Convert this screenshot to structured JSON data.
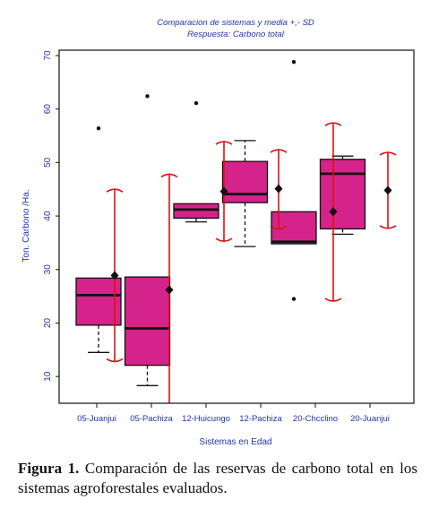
{
  "chart_data": {
    "type": "box",
    "title": "Comparacion de sistemas y media +,- SD",
    "subtitle": "Respuesta: Carbono total",
    "xlabel": "Sistemas en Edad",
    "ylabel": "Ton. Carbono /Ha.",
    "ylim": [
      5,
      71
    ],
    "yticks": [
      10,
      20,
      30,
      40,
      50,
      60,
      70
    ],
    "categories": [
      "05-Juanjui",
      "05-Pachiza",
      "12-Huicungo",
      "12-Pachiza",
      "20-Chcclino",
      "20-Juanjui"
    ],
    "boxes": [
      {
        "category": "05-Juanjui",
        "whisker_low": 14.5,
        "q1": 19.6,
        "median": 25.2,
        "q3": 28.4,
        "whisker_high": 28.4,
        "outliers": [
          56.4
        ]
      },
      {
        "category": "05-Pachiza",
        "whisker_low": 8.3,
        "q1": 12.1,
        "median": 19.0,
        "q3": 28.6,
        "whisker_high": 28.6,
        "outliers": [
          62.4
        ]
      },
      {
        "category": "12-Huicungo",
        "whisker_low": 38.9,
        "q1": 39.6,
        "median": 41.2,
        "q3": 42.3,
        "whisker_high": 42.3,
        "outliers": [
          61.1
        ]
      },
      {
        "category": "12-Pachiza",
        "whisker_low": 34.3,
        "q1": 42.5,
        "median": 44.1,
        "q3": 50.2,
        "whisker_high": 54.1,
        "outliers": []
      },
      {
        "category": "20-Chcclino",
        "whisker_low": 34.8,
        "q1": 34.8,
        "median": 35.2,
        "q3": 40.8,
        "whisker_high": 40.8,
        "outliers": [
          68.8,
          24.5
        ]
      },
      {
        "category": "20-Juanjui",
        "whisker_low": 36.6,
        "q1": 37.6,
        "median": 47.9,
        "q3": 50.6,
        "whisker_high": 51.2,
        "outliers": []
      }
    ],
    "mean_sd": [
      {
        "category": "05-Juanjui",
        "mean": 28.9,
        "low": 12.8,
        "high": 45.0
      },
      {
        "category": "05-Pachiza",
        "mean": 26.2,
        "low": 4.0,
        "high": 47.8
      },
      {
        "category": "12-Huicungo",
        "mean": 44.6,
        "low": 35.3,
        "high": 53.9
      },
      {
        "category": "12-Pachiza",
        "mean": 45.1,
        "low": 37.6,
        "high": 52.4
      },
      {
        "category": "20-Chcclino",
        "mean": 40.8,
        "low": 24.1,
        "high": 57.4
      },
      {
        "category": "20-Juanjui",
        "mean": 44.8,
        "low": 37.7,
        "high": 51.9
      }
    ],
    "colors": {
      "box_fill": "#d4238a",
      "box_stroke": "#111111",
      "sd_bar": "#dd1111",
      "text": "#2233aa"
    },
    "grid": false
  },
  "caption": {
    "label": "Figura 1.",
    "text": "Comparación de las reservas de carbono total en los sistemas agroforestales evaluados."
  }
}
